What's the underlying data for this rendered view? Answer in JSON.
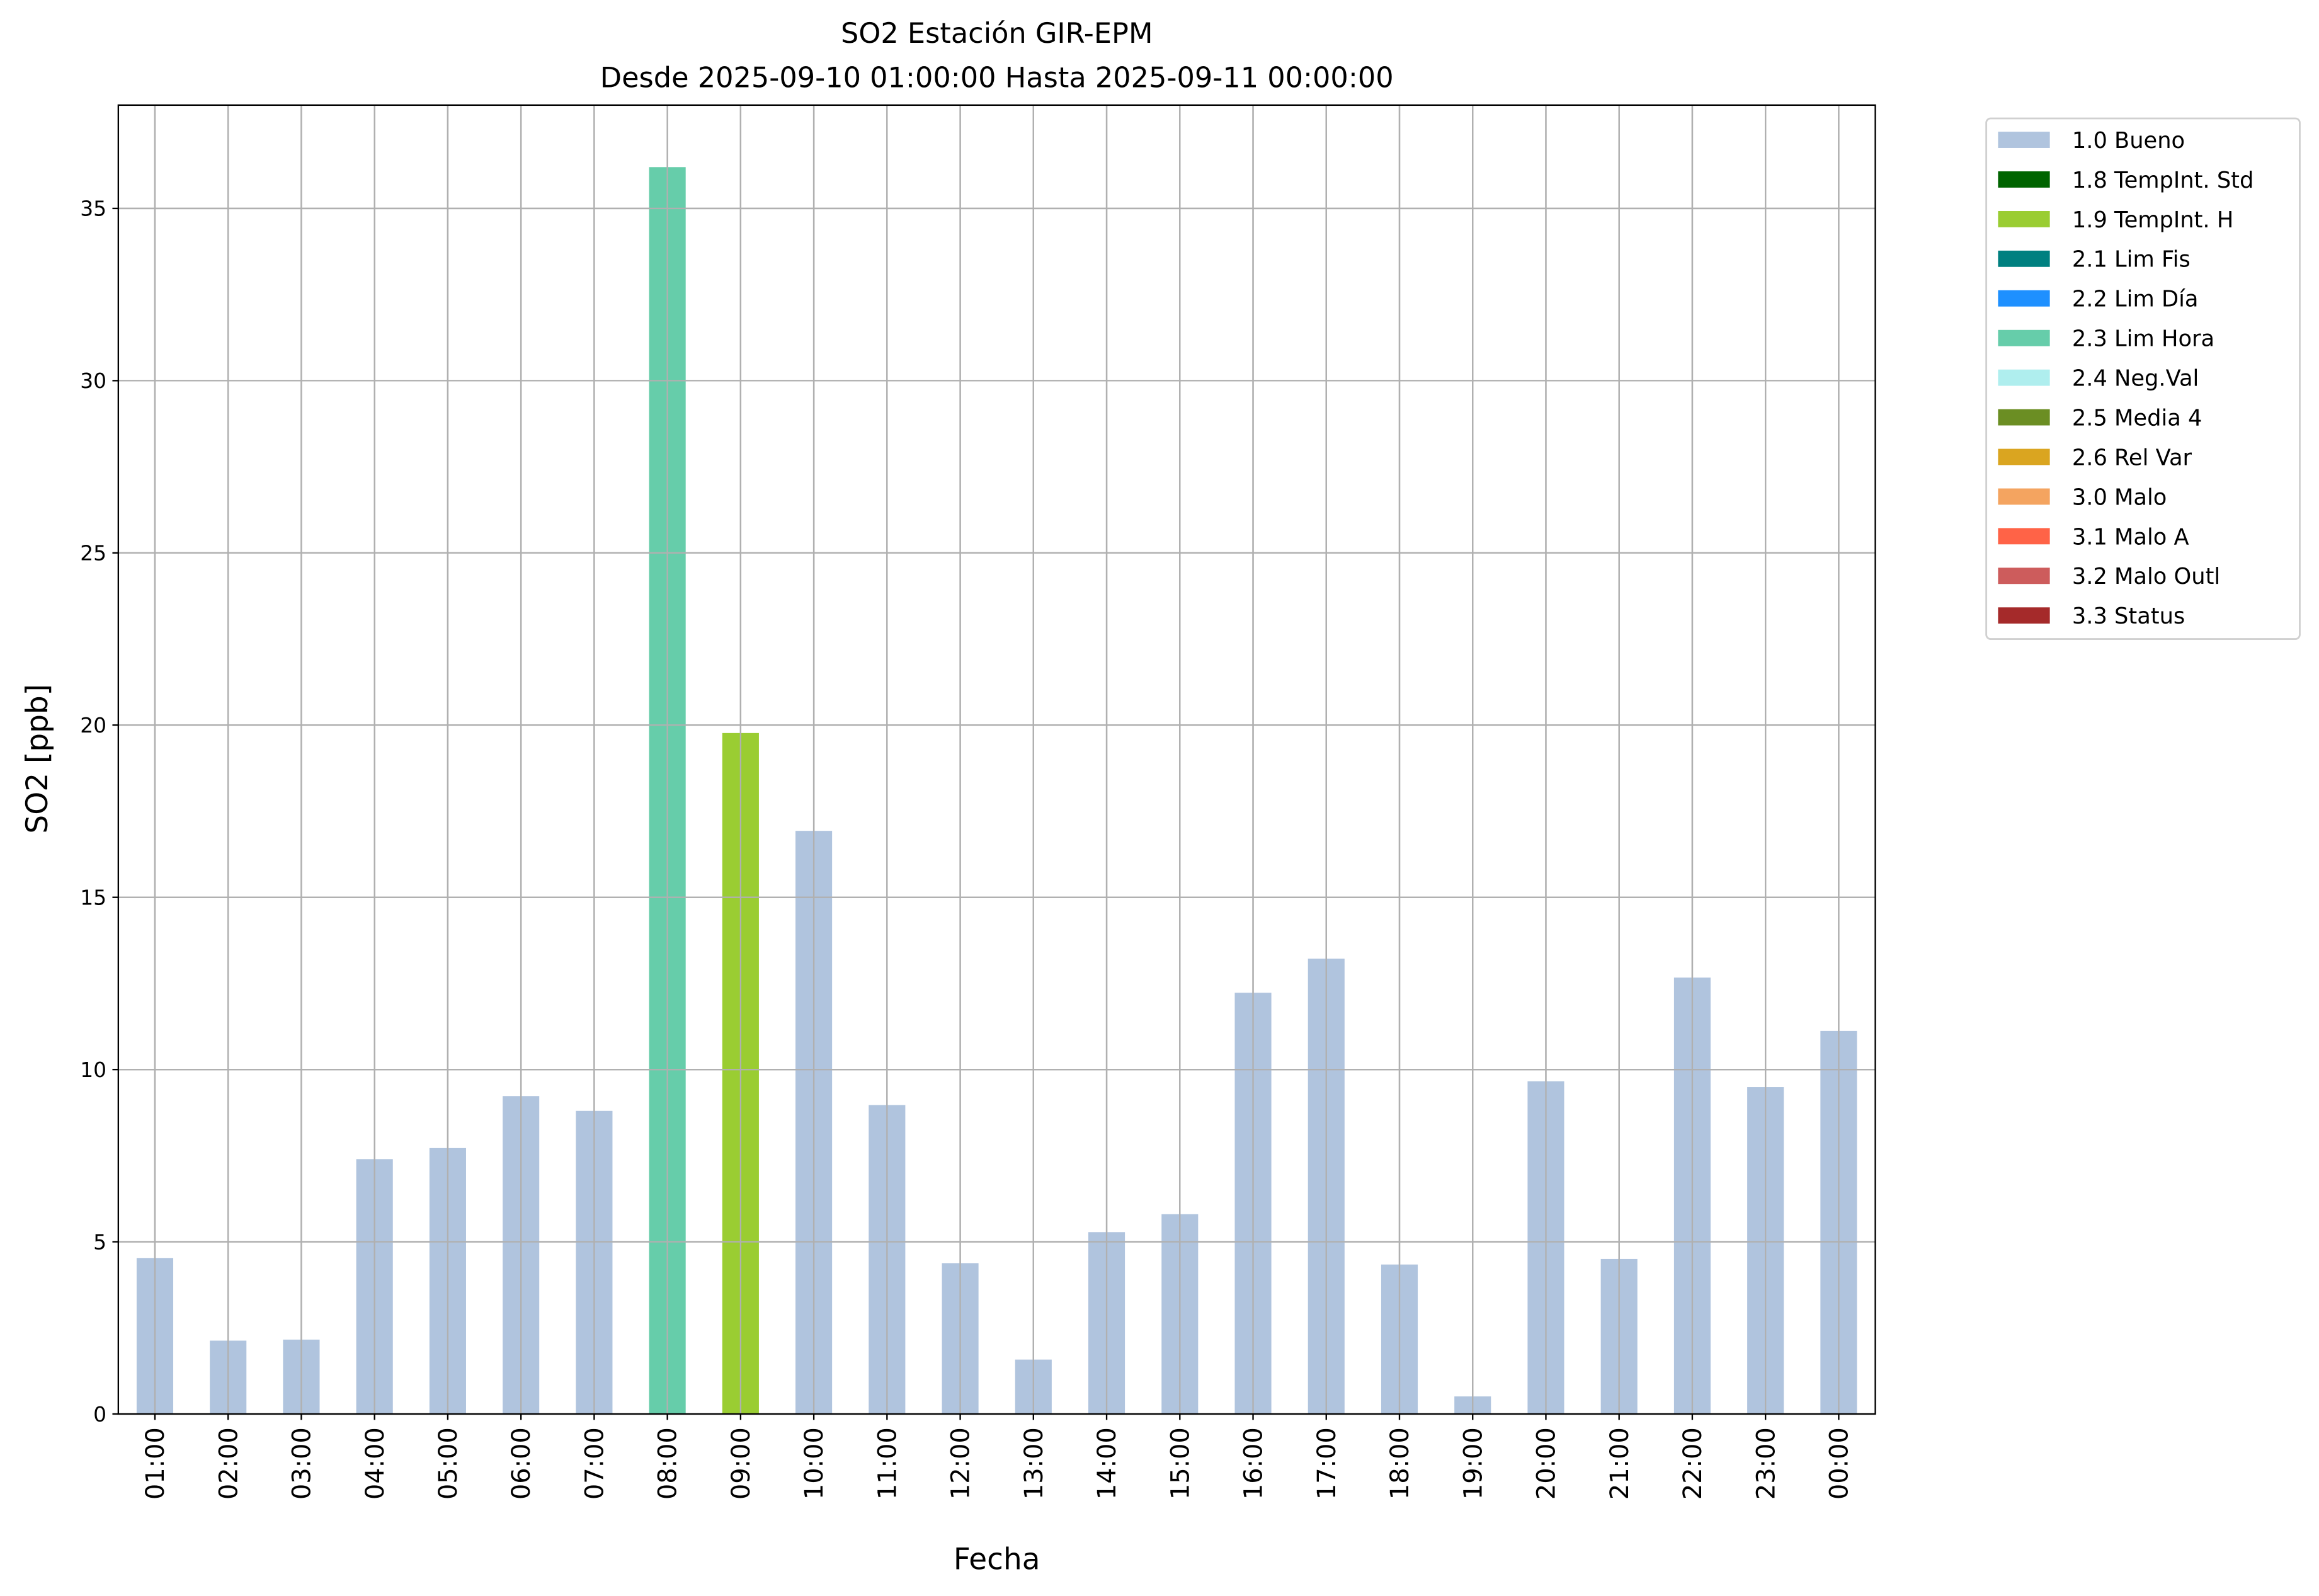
{
  "chart_data": {
    "type": "bar",
    "title": "SO2 Estación GIR-EPM",
    "subtitle": "Desde 2025-09-10 01:00:00 Hasta 2025-09-11 00:00:00",
    "xlabel": "Fecha",
    "ylabel": "SO2 [ppb]",
    "ylim": [
      0,
      38
    ],
    "yticks": [
      0,
      5,
      10,
      15,
      20,
      25,
      30,
      35
    ],
    "grid": true,
    "legend_position": "outside-right-top",
    "categories": [
      "01:00",
      "02:00",
      "03:00",
      "04:00",
      "05:00",
      "06:00",
      "07:00",
      "08:00",
      "09:00",
      "10:00",
      "11:00",
      "12:00",
      "13:00",
      "14:00",
      "15:00",
      "16:00",
      "17:00",
      "18:00",
      "19:00",
      "20:00",
      "21:00",
      "22:00",
      "23:00",
      "00:00"
    ],
    "values": [
      4.53,
      2.13,
      2.16,
      7.4,
      7.72,
      9.23,
      8.8,
      36.2,
      19.77,
      16.93,
      8.97,
      4.38,
      1.58,
      5.28,
      5.8,
      12.23,
      13.22,
      4.34,
      0.51,
      9.66,
      4.5,
      12.67,
      9.49,
      11.12
    ],
    "flags": [
      "1.0 Bueno",
      "1.0 Bueno",
      "1.0 Bueno",
      "1.0 Bueno",
      "1.0 Bueno",
      "1.0 Bueno",
      "1.0 Bueno",
      "2.3 Lim Hora",
      "1.9 TempInt. H",
      "1.0 Bueno",
      "1.0 Bueno",
      "1.0 Bueno",
      "1.0 Bueno",
      "1.0 Bueno",
      "1.0 Bueno",
      "1.0 Bueno",
      "1.0 Bueno",
      "1.0 Bueno",
      "1.0 Bueno",
      "1.0 Bueno",
      "1.0 Bueno",
      "1.0 Bueno",
      "1.0 Bueno",
      "1.0 Bueno"
    ],
    "legend": [
      {
        "label": "1.0 Bueno",
        "color": "#b0c4de"
      },
      {
        "label": "1.8 TempInt. Std",
        "color": "#006400"
      },
      {
        "label": "1.9 TempInt. H",
        "color": "#9acd32"
      },
      {
        "label": "2.1 Lim Fis",
        "color": "#008080"
      },
      {
        "label": "2.2 Lim Día",
        "color": "#1e90ff"
      },
      {
        "label": "2.3 Lim Hora",
        "color": "#66cdaa"
      },
      {
        "label": "2.4 Neg.Val",
        "color": "#afeeee"
      },
      {
        "label": "2.5 Media 4",
        "color": "#6b8e23"
      },
      {
        "label": "2.6 Rel Var",
        "color": "#daa520"
      },
      {
        "label": "3.0 Malo",
        "color": "#f4a460"
      },
      {
        "label": "3.1 Malo A",
        "color": "#ff6347"
      },
      {
        "label": "3.2 Malo Outl",
        "color": "#cd5c5c"
      },
      {
        "label": "3.3 Status",
        "color": "#a52a2a"
      }
    ]
  }
}
